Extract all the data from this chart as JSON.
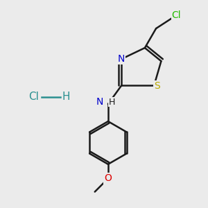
{
  "background_color": "#ebebeb",
  "bond_color": "#1a1a1a",
  "bond_width": 1.8,
  "atom_colors": {
    "Cl": "#22bb00",
    "N": "#0000cc",
    "S": "#bbaa00",
    "O": "#dd0000",
    "H": "#1a1a1a",
    "C": "#1a1a1a"
  },
  "hcl_color": "#2a9090",
  "font_size_atoms": 10,
  "font_size_hcl": 11
}
